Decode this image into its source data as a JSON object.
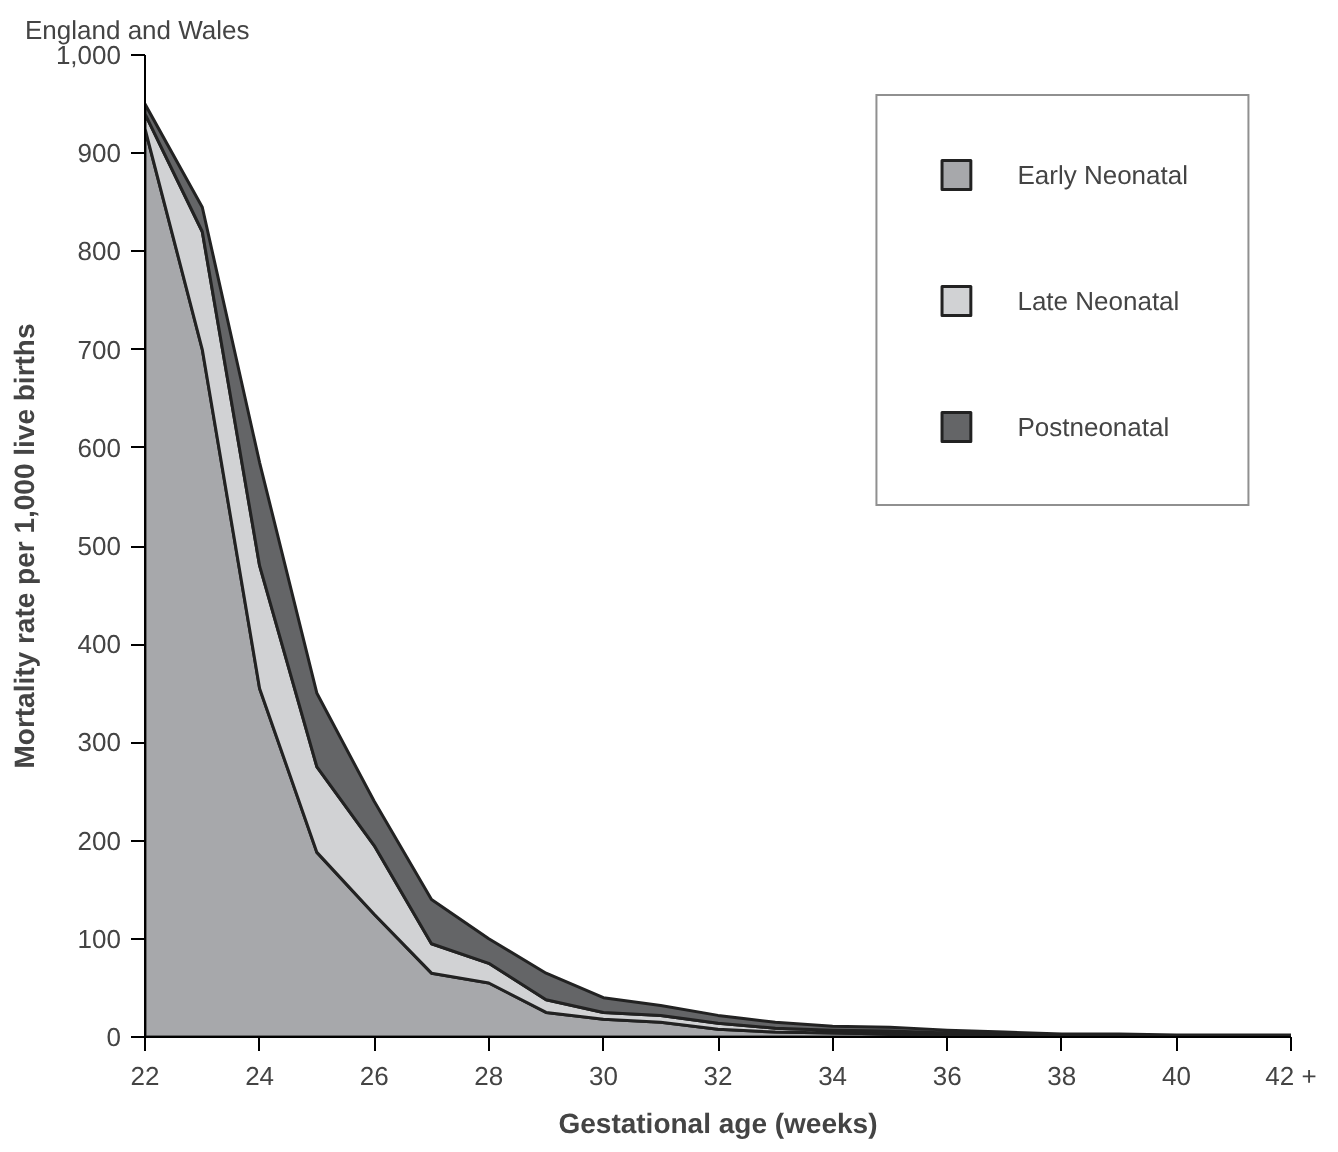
{
  "chart_data": {
    "type": "area",
    "stacked": true,
    "title": "England and Wales",
    "xlabel": "Gestational age (weeks)",
    "ylabel": "Mortality rate per 1,000 live births",
    "x": [
      22,
      23,
      24,
      25,
      26,
      27,
      28,
      29,
      30,
      31,
      32,
      33,
      34,
      35,
      36,
      37,
      38,
      39,
      40,
      41,
      42
    ],
    "series": [
      {
        "name": "Early Neonatal",
        "color": "#a7a8ab",
        "values": [
          925,
          700,
          355,
          188,
          125,
          65,
          55,
          25,
          18,
          15,
          8,
          5,
          4,
          3,
          2,
          1,
          1,
          1,
          0,
          0,
          0
        ]
      },
      {
        "name": "Late Neonatal",
        "color": "#d1d2d4",
        "values": [
          15,
          120,
          125,
          87,
          70,
          30,
          20,
          13,
          7,
          7,
          6,
          4,
          3,
          3,
          2,
          2,
          1,
          1,
          1,
          1,
          1
        ]
      },
      {
        "name": "Postneonatal",
        "color": "#646567",
        "values": [
          10,
          25,
          105,
          75,
          45,
          45,
          25,
          27,
          15,
          10,
          8,
          6,
          4,
          4,
          3,
          2,
          1,
          1,
          1,
          1,
          1
        ]
      }
    ],
    "xlim": [
      22,
      42
    ],
    "xticks": [
      22,
      24,
      26,
      28,
      30,
      32,
      34,
      36,
      38,
      40,
      {
        "value": 42,
        "label": "42 +"
      }
    ],
    "ylim": [
      0,
      1000
    ],
    "yticks": [
      0,
      100,
      200,
      300,
      400,
      500,
      600,
      700,
      800,
      900,
      {
        "value": 1000,
        "label": "1,000"
      }
    ],
    "grid": false,
    "legend": "top right"
  }
}
